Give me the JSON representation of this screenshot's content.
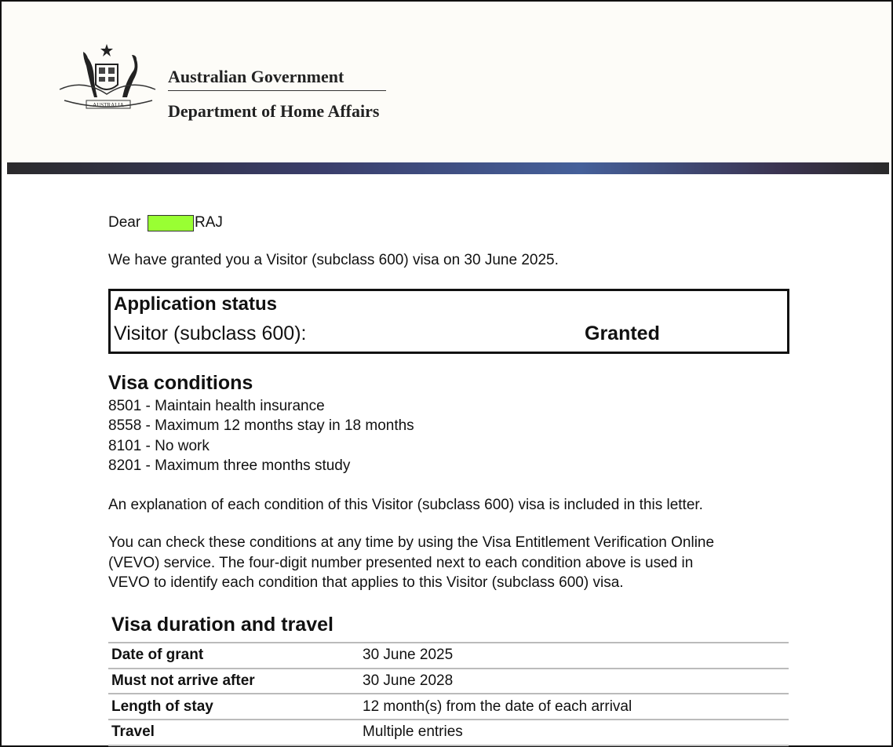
{
  "header": {
    "org": "Australian Government",
    "dept": "Department of Home Affairs",
    "crest_text": "AUSTRALIA",
    "crest_icon": "coat-of-arms-icon",
    "band_colors": [
      "#2b2a2c",
      "#45609a",
      "#2a2a2a"
    ]
  },
  "letter": {
    "salutation": "Dear",
    "surname": "RAJ",
    "redaction_color": "#99ff33",
    "intro": "We have granted you a Visitor (subclass 600) visa on 30 June 2025.",
    "status": {
      "title": "Application status",
      "visa": "Visitor (subclass 600):",
      "value": "Granted"
    },
    "conditions": {
      "title": "Visa conditions",
      "items": [
        "8501 - Maintain health insurance",
        "8558 - Maximum 12 months stay in 18 months",
        "8101 - No work",
        "8201 - Maximum three months study"
      ]
    },
    "explanation": "An explanation of each condition of this Visitor (subclass 600) visa is included in this letter.",
    "vevo": [
      "You can check these conditions at any time by using the Visa Entitlement Verification Online",
      "(VEVO) service. The four-digit number presented next to each condition above is used in",
      "VEVO to identify each condition that applies to this Visitor (subclass 600) visa."
    ],
    "duration": {
      "title": "Visa duration and travel",
      "rows": [
        {
          "label": "Date of grant",
          "value": "30 June 2025"
        },
        {
          "label": "Must not arrive after",
          "value": "30 June 2028"
        },
        {
          "label": "Length of stay",
          "value": "12 month(s) from the date of each arrival"
        },
        {
          "label": "Travel",
          "value": "Multiple entries"
        }
      ]
    }
  }
}
